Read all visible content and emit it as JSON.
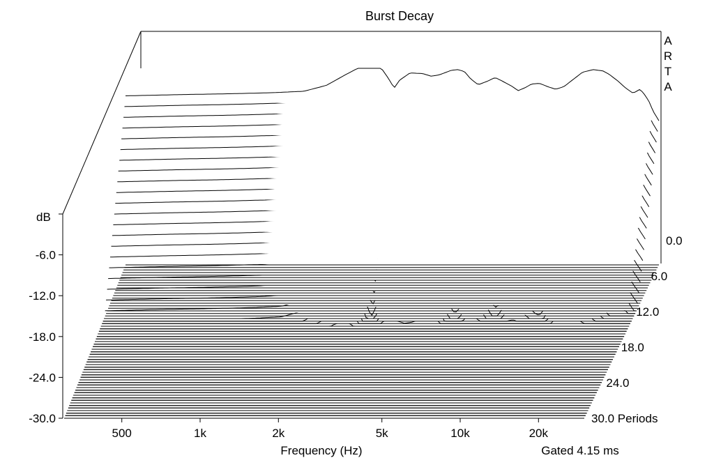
{
  "chart_data": {
    "type": "waterfall",
    "title": "Burst Decay",
    "xlabel": "Frequency (Hz)",
    "ylabel": "dB",
    "zlabel": "Periods",
    "brand": "ARTA",
    "note": "Gated 4.15 ms",
    "x_scale": "log",
    "x_range_hz": [
      300,
      30000
    ],
    "y_range_db": [
      -30,
      0
    ],
    "z_range_periods": [
      0,
      30
    ],
    "x_ticks": [
      {
        "value": 500,
        "label": "500"
      },
      {
        "value": 1000,
        "label": "1k"
      },
      {
        "value": 2000,
        "label": "2k"
      },
      {
        "value": 5000,
        "label": "5k"
      },
      {
        "value": 10000,
        "label": "10k"
      },
      {
        "value": 20000,
        "label": "20k"
      }
    ],
    "y_ticks": [
      {
        "value": 0,
        "label": ""
      },
      {
        "value": -6,
        "label": "-6.0"
      },
      {
        "value": -12,
        "label": "-12.0"
      },
      {
        "value": -18,
        "label": "-18.0"
      },
      {
        "value": -24,
        "label": "-24.0"
      },
      {
        "value": -30,
        "label": "-30.0"
      }
    ],
    "z_ticks": [
      {
        "value": 0,
        "label": "0.0"
      },
      {
        "value": 6,
        "label": "6.0"
      },
      {
        "value": 12,
        "label": "12.0"
      },
      {
        "value": 18,
        "label": "18.0"
      },
      {
        "value": 24,
        "label": "24.0"
      },
      {
        "value": 30,
        "label": "30.0 Periods"
      }
    ],
    "grid": false,
    "front_slice_db": {
      "frequency_hz": [
        300,
        500,
        700,
        900,
        1100,
        1400,
        1700,
        2000,
        2300,
        2500,
        2700,
        2900,
        3050,
        3200,
        3500,
        3900,
        4200,
        4500,
        5000,
        5300,
        5600,
        5900,
        6300,
        6800,
        7300,
        7800,
        8400,
        8900,
        9400,
        10000,
        10700,
        11500,
        12300,
        13200,
        14000,
        15500,
        17000,
        18500,
        19500,
        21000,
        22500,
        24000,
        25500,
        26500,
        27500,
        28500,
        30000
      ],
      "db": [
        -4.2,
        -4.0,
        -3.9,
        -3.8,
        -3.7,
        -3.5,
        -2.6,
        -1.0,
        0.3,
        0.7,
        0.3,
        -1.5,
        -3.0,
        -1.8,
        -0.7,
        -0.8,
        -1.2,
        -1.0,
        -0.3,
        -0.2,
        -0.5,
        -1.6,
        -2.5,
        -2.0,
        -1.4,
        -2.0,
        -2.7,
        -3.4,
        -3.0,
        -2.4,
        -2.3,
        -2.8,
        -3.2,
        -2.8,
        -2.0,
        -0.6,
        -0.2,
        -0.4,
        -0.9,
        -1.9,
        -3.0,
        -3.8,
        -3.2,
        -4.0,
        -5.0,
        -6.5,
        -8.0
      ]
    },
    "notch_frequencies_hz": [
      3050,
      6300,
      8900,
      13200,
      25500
    ],
    "slices": 61
  }
}
